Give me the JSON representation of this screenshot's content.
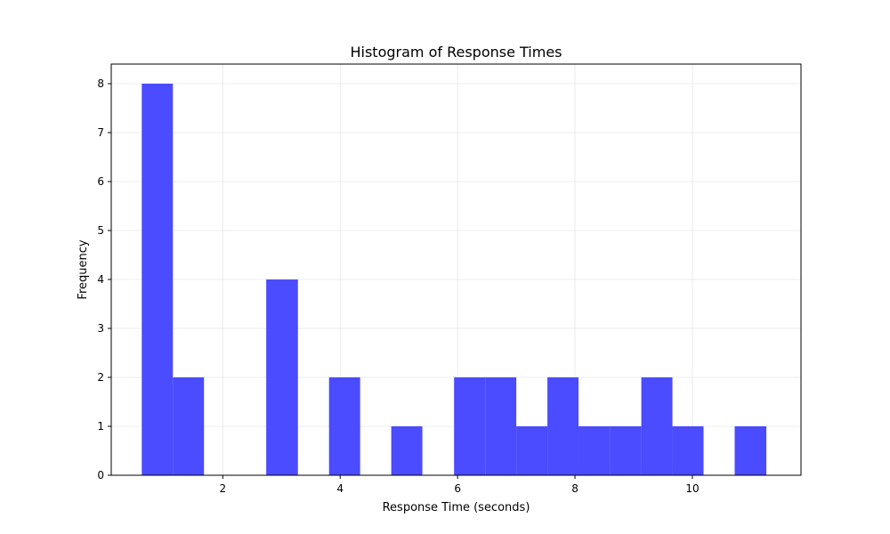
{
  "chart_data": {
    "type": "bar",
    "title": "Histogram of Response Times",
    "xlabel": "Response Time (seconds)",
    "ylabel": "Frequency",
    "xlim": [
      0.1,
      11.85
    ],
    "ylim": [
      0,
      8.4
    ],
    "xticks": [
      2,
      4,
      6,
      8,
      10
    ],
    "yticks": [
      0,
      1,
      2,
      3,
      4,
      5,
      6,
      7,
      8
    ],
    "grid": true,
    "color": "#4b4bff",
    "bins": [
      {
        "start": 0.62,
        "end": 1.15,
        "count": 8
      },
      {
        "start": 1.15,
        "end": 1.68,
        "count": 2
      },
      {
        "start": 1.68,
        "end": 2.21,
        "count": 0
      },
      {
        "start": 2.21,
        "end": 2.74,
        "count": 0
      },
      {
        "start": 2.74,
        "end": 3.28,
        "count": 4
      },
      {
        "start": 3.28,
        "end": 3.81,
        "count": 0
      },
      {
        "start": 3.81,
        "end": 4.34,
        "count": 2
      },
      {
        "start": 4.34,
        "end": 4.87,
        "count": 0
      },
      {
        "start": 4.87,
        "end": 5.4,
        "count": 1
      },
      {
        "start": 5.4,
        "end": 5.94,
        "count": 0
      },
      {
        "start": 5.94,
        "end": 6.47,
        "count": 2
      },
      {
        "start": 6.47,
        "end": 7.0,
        "count": 2
      },
      {
        "start": 7.0,
        "end": 7.53,
        "count": 1
      },
      {
        "start": 7.53,
        "end": 8.06,
        "count": 2
      },
      {
        "start": 8.06,
        "end": 8.6,
        "count": 1
      },
      {
        "start": 8.6,
        "end": 9.13,
        "count": 1
      },
      {
        "start": 9.13,
        "end": 9.66,
        "count": 2
      },
      {
        "start": 9.66,
        "end": 10.19,
        "count": 1
      },
      {
        "start": 10.19,
        "end": 10.72,
        "count": 0
      },
      {
        "start": 10.72,
        "end": 11.26,
        "count": 1
      }
    ]
  }
}
